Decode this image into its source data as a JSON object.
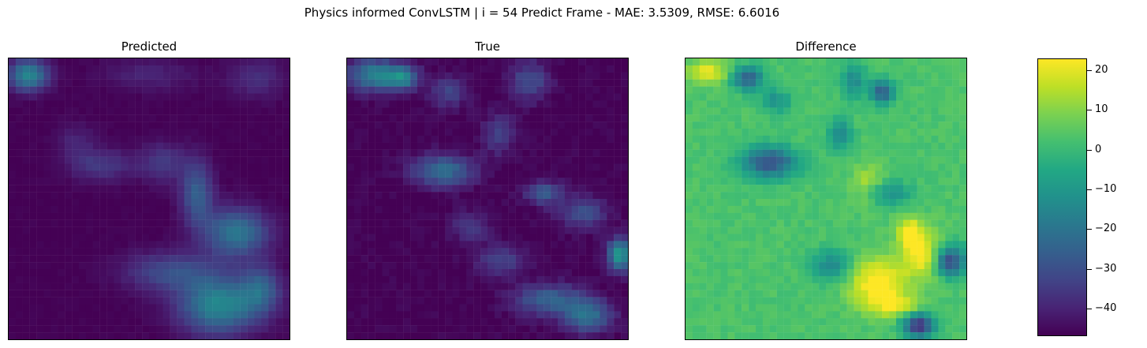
{
  "figure": {
    "suptitle": "Physics informed ConvLSTM | i = 54 Predict Frame - MAE: 3.5309, RMSE: 6.6016"
  },
  "chart_data": [
    {
      "type": "heatmap",
      "title": "Predicted",
      "grid_cells": [
        40,
        40
      ],
      "axes_ticks": "hidden",
      "colormap": "viridis",
      "value_range": [
        0,
        30
      ],
      "description_of_values": "mostly low (~0-3); broad moderate plume (~10-15) spreading from center toward lower-right, bright blob top-left corner",
      "blobs": [
        {
          "x": 0.07,
          "y": 0.06,
          "sx": 0.05,
          "sy": 0.04,
          "v": 14
        },
        {
          "x": 0.33,
          "y": 0.38,
          "sx": 0.08,
          "sy": 0.04,
          "v": 5
        },
        {
          "x": 0.24,
          "y": 0.3,
          "sx": 0.05,
          "sy": 0.05,
          "v": 3
        },
        {
          "x": 0.55,
          "y": 0.37,
          "sx": 0.06,
          "sy": 0.05,
          "v": 5
        },
        {
          "x": 0.67,
          "y": 0.48,
          "sx": 0.04,
          "sy": 0.08,
          "v": 9
        },
        {
          "x": 0.81,
          "y": 0.62,
          "sx": 0.08,
          "sy": 0.06,
          "v": 12
        },
        {
          "x": 0.58,
          "y": 0.76,
          "sx": 0.12,
          "sy": 0.05,
          "v": 7
        },
        {
          "x": 0.75,
          "y": 0.88,
          "sx": 0.1,
          "sy": 0.07,
          "v": 14
        },
        {
          "x": 0.9,
          "y": 0.82,
          "sx": 0.05,
          "sy": 0.06,
          "v": 8
        },
        {
          "x": 0.88,
          "y": 0.07,
          "sx": 0.07,
          "sy": 0.05,
          "v": 4
        },
        {
          "x": 0.5,
          "y": 0.06,
          "sx": 0.12,
          "sy": 0.04,
          "v": 3
        }
      ]
    },
    {
      "type": "heatmap",
      "title": "True",
      "grid_cells": [
        40,
        40
      ],
      "axes_ticks": "hidden",
      "colormap": "viridis",
      "value_range": [
        0,
        50
      ],
      "description_of_values": "sparse streaks of moderate-to-high values (~10-30) in upper-left and diagonal bands toward lower-right; background ~0",
      "blobs": [
        {
          "x": 0.1,
          "y": 0.06,
          "sx": 0.07,
          "sy": 0.04,
          "v": 22
        },
        {
          "x": 0.2,
          "y": 0.07,
          "sx": 0.04,
          "sy": 0.03,
          "v": 18
        },
        {
          "x": 0.36,
          "y": 0.12,
          "sx": 0.05,
          "sy": 0.04,
          "v": 10
        },
        {
          "x": 0.65,
          "y": 0.08,
          "sx": 0.05,
          "sy": 0.05,
          "v": 12
        },
        {
          "x": 0.34,
          "y": 0.4,
          "sx": 0.08,
          "sy": 0.04,
          "v": 18
        },
        {
          "x": 0.54,
          "y": 0.27,
          "sx": 0.04,
          "sy": 0.05,
          "v": 10
        },
        {
          "x": 0.7,
          "y": 0.48,
          "sx": 0.05,
          "sy": 0.03,
          "v": 14
        },
        {
          "x": 0.84,
          "y": 0.55,
          "sx": 0.06,
          "sy": 0.04,
          "v": 12
        },
        {
          "x": 0.97,
          "y": 0.7,
          "sx": 0.03,
          "sy": 0.04,
          "v": 28
        },
        {
          "x": 0.55,
          "y": 0.72,
          "sx": 0.06,
          "sy": 0.04,
          "v": 10
        },
        {
          "x": 0.72,
          "y": 0.86,
          "sx": 0.09,
          "sy": 0.04,
          "v": 16
        },
        {
          "x": 0.86,
          "y": 0.92,
          "sx": 0.06,
          "sy": 0.04,
          "v": 18
        },
        {
          "x": 0.44,
          "y": 0.6,
          "sx": 0.05,
          "sy": 0.04,
          "v": 8
        }
      ]
    },
    {
      "type": "heatmap",
      "title": "Difference",
      "grid_cells": [
        40,
        40
      ],
      "axes_ticks": "hidden",
      "colormap": "viridis",
      "value_range": [
        -47,
        23
      ],
      "description_of_values": "mostly near 0-5 (green); negative streaks (~-30 to -45, blue/purple) along the True-only features; positive patches (~+15 to +23, yellow) in lower half",
      "baseline": 3,
      "blobs": [
        {
          "x": 0.08,
          "y": 0.05,
          "sx": 0.05,
          "sy": 0.03,
          "v": 18
        },
        {
          "x": 0.22,
          "y": 0.07,
          "sx": 0.04,
          "sy": 0.03,
          "v": -28
        },
        {
          "x": 0.32,
          "y": 0.15,
          "sx": 0.04,
          "sy": 0.03,
          "v": -15
        },
        {
          "x": 0.6,
          "y": 0.08,
          "sx": 0.03,
          "sy": 0.04,
          "v": -18
        },
        {
          "x": 0.7,
          "y": 0.12,
          "sx": 0.03,
          "sy": 0.03,
          "v": -30
        },
        {
          "x": 0.3,
          "y": 0.37,
          "sx": 0.07,
          "sy": 0.04,
          "v": -32
        },
        {
          "x": 0.55,
          "y": 0.27,
          "sx": 0.03,
          "sy": 0.04,
          "v": -18
        },
        {
          "x": 0.72,
          "y": 0.48,
          "sx": 0.06,
          "sy": 0.03,
          "v": -16
        },
        {
          "x": 0.94,
          "y": 0.72,
          "sx": 0.04,
          "sy": 0.04,
          "v": -38
        },
        {
          "x": 0.85,
          "y": 0.7,
          "sx": 0.06,
          "sy": 0.06,
          "v": 20
        },
        {
          "x": 0.68,
          "y": 0.8,
          "sx": 0.07,
          "sy": 0.06,
          "v": 22
        },
        {
          "x": 0.8,
          "y": 0.62,
          "sx": 0.03,
          "sy": 0.04,
          "v": 19
        },
        {
          "x": 0.52,
          "y": 0.74,
          "sx": 0.05,
          "sy": 0.04,
          "v": -18
        },
        {
          "x": 0.83,
          "y": 0.95,
          "sx": 0.04,
          "sy": 0.03,
          "v": -40
        },
        {
          "x": 0.75,
          "y": 0.88,
          "sx": 0.06,
          "sy": 0.03,
          "v": 16
        },
        {
          "x": 0.65,
          "y": 0.45,
          "sx": 0.04,
          "sy": 0.05,
          "v": 12
        }
      ]
    }
  ],
  "colorbar": {
    "colormap": "viridis",
    "min": -47,
    "max": 23,
    "ticks": [
      20,
      10,
      0,
      -10,
      -20,
      -30,
      -40
    ],
    "tick_labels": [
      "20",
      "10",
      "0",
      "−10",
      "−20",
      "−30",
      "−40"
    ]
  }
}
